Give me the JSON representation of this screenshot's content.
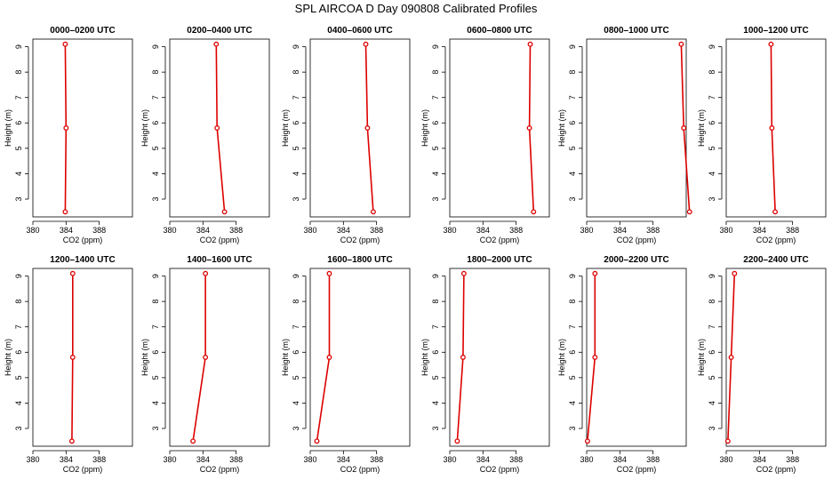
{
  "title": "SPL AIRCOA D  Day 090808  Calibrated Profiles",
  "colors": {
    "profile": "#dd0000",
    "axis": "#000000"
  },
  "chart_data": [
    {
      "type": "line",
      "title": "0000–0200 UTC",
      "xlabel": "CO2 (ppm)",
      "ylabel": "Height (m)",
      "xlim": [
        380,
        392
      ],
      "ylim": [
        2.3,
        9.3
      ],
      "xticks": [
        380,
        384,
        388
      ],
      "yticks": [
        3,
        4,
        5,
        6,
        7,
        8,
        9
      ],
      "series": [
        {
          "x": [
            383.9,
            384.0,
            383.9
          ],
          "y": [
            2.5,
            5.8,
            9.1
          ]
        }
      ]
    },
    {
      "type": "line",
      "title": "0200–0400 UTC",
      "xlabel": "CO2 (ppm)",
      "ylabel": "Height (m)",
      "xlim": [
        380,
        392
      ],
      "ylim": [
        2.3,
        9.3
      ],
      "xticks": [
        380,
        384,
        388
      ],
      "yticks": [
        3,
        4,
        5,
        6,
        7,
        8,
        9
      ],
      "series": [
        {
          "x": [
            386.6,
            385.7,
            385.6
          ],
          "y": [
            2.5,
            5.8,
            9.1
          ]
        }
      ]
    },
    {
      "type": "line",
      "title": "0400–0600 UTC",
      "xlabel": "CO2 (ppm)",
      "ylabel": "Height (m)",
      "xlim": [
        380,
        392
      ],
      "ylim": [
        2.3,
        9.3
      ],
      "xticks": [
        380,
        384,
        388
      ],
      "yticks": [
        3,
        4,
        5,
        6,
        7,
        8,
        9
      ],
      "series": [
        {
          "x": [
            387.6,
            386.9,
            386.7
          ],
          "y": [
            2.5,
            5.8,
            9.1
          ]
        }
      ]
    },
    {
      "type": "line",
      "title": "0600–0800 UTC",
      "xlabel": "CO2 (ppm)",
      "ylabel": "Height (m)",
      "xlim": [
        380,
        392
      ],
      "ylim": [
        2.3,
        9.3
      ],
      "xticks": [
        380,
        384,
        388
      ],
      "yticks": [
        3,
        4,
        5,
        6,
        7,
        8,
        9
      ],
      "series": [
        {
          "x": [
            390.1,
            389.6,
            389.7
          ],
          "y": [
            2.5,
            5.8,
            9.1
          ]
        }
      ]
    },
    {
      "type": "line",
      "title": "0800–1000 UTC",
      "xlabel": "CO2 (ppm)",
      "ylabel": "Height (m)",
      "xlim": [
        380,
        392
      ],
      "ylim": [
        2.3,
        9.3
      ],
      "xticks": [
        380,
        384,
        388
      ],
      "yticks": [
        3,
        4,
        5,
        6,
        7,
        8,
        9
      ],
      "series": [
        {
          "x": [
            392.4,
            391.7,
            391.4
          ],
          "y": [
            2.5,
            5.8,
            9.1
          ]
        }
      ]
    },
    {
      "type": "line",
      "title": "1000–1200 UTC",
      "xlabel": "CO2 (ppm)",
      "ylabel": "Height (m)",
      "xlim": [
        380,
        392
      ],
      "ylim": [
        2.3,
        9.3
      ],
      "xticks": [
        380,
        384,
        388
      ],
      "yticks": [
        3,
        4,
        5,
        6,
        7,
        8,
        9
      ],
      "series": [
        {
          "x": [
            385.9,
            385.5,
            385.4
          ],
          "y": [
            2.5,
            5.8,
            9.1
          ]
        }
      ]
    },
    {
      "type": "line",
      "title": "1200–1400 UTC",
      "xlabel": "CO2 (ppm)",
      "ylabel": "Height (m)",
      "xlim": [
        380,
        392
      ],
      "ylim": [
        2.3,
        9.3
      ],
      "xticks": [
        380,
        384,
        388
      ],
      "yticks": [
        3,
        4,
        5,
        6,
        7,
        8,
        9
      ],
      "series": [
        {
          "x": [
            384.7,
            384.8,
            384.8
          ],
          "y": [
            2.5,
            5.8,
            9.1
          ]
        }
      ]
    },
    {
      "type": "line",
      "title": "1400–1600 UTC",
      "xlabel": "CO2 (ppm)",
      "ylabel": "Height (m)",
      "xlim": [
        380,
        392
      ],
      "ylim": [
        2.3,
        9.3
      ],
      "xticks": [
        380,
        384,
        388
      ],
      "yticks": [
        3,
        4,
        5,
        6,
        7,
        8,
        9
      ],
      "series": [
        {
          "x": [
            382.8,
            384.3,
            384.3
          ],
          "y": [
            2.5,
            5.8,
            9.1
          ]
        }
      ]
    },
    {
      "type": "line",
      "title": "1600–1800 UTC",
      "xlabel": "CO2 (ppm)",
      "ylabel": "Height (m)",
      "xlim": [
        380,
        392
      ],
      "ylim": [
        2.3,
        9.3
      ],
      "xticks": [
        380,
        384,
        388
      ],
      "yticks": [
        3,
        4,
        5,
        6,
        7,
        8,
        9
      ],
      "series": [
        {
          "x": [
            380.8,
            382.3,
            382.3
          ],
          "y": [
            2.5,
            5.8,
            9.1
          ]
        }
      ]
    },
    {
      "type": "line",
      "title": "1800–2000 UTC",
      "xlabel": "CO2 (ppm)",
      "ylabel": "Height (m)",
      "xlim": [
        380,
        392
      ],
      "ylim": [
        2.3,
        9.3
      ],
      "xticks": [
        380,
        384,
        388
      ],
      "yticks": [
        3,
        4,
        5,
        6,
        7,
        8,
        9
      ],
      "series": [
        {
          "x": [
            380.9,
            381.6,
            381.7
          ],
          "y": [
            2.5,
            5.8,
            9.1
          ]
        }
      ]
    },
    {
      "type": "line",
      "title": "2000–2200 UTC",
      "xlabel": "CO2 (ppm)",
      "ylabel": "Height (m)",
      "xlim": [
        380,
        392
      ],
      "ylim": [
        2.3,
        9.3
      ],
      "xticks": [
        380,
        384,
        388
      ],
      "yticks": [
        3,
        4,
        5,
        6,
        7,
        8,
        9
      ],
      "series": [
        {
          "x": [
            380.1,
            381.0,
            381.0
          ],
          "y": [
            2.5,
            5.8,
            9.1
          ]
        }
      ]
    },
    {
      "type": "line",
      "title": "2200–2400 UTC",
      "xlabel": "CO2 (ppm)",
      "ylabel": "Height (m)",
      "xlim": [
        380,
        392
      ],
      "ylim": [
        2.3,
        9.3
      ],
      "xticks": [
        380,
        384,
        388
      ],
      "yticks": [
        3,
        4,
        5,
        6,
        7,
        8,
        9
      ],
      "series": [
        {
          "x": [
            380.2,
            380.6,
            381.0
          ],
          "y": [
            2.5,
            5.8,
            9.1
          ]
        }
      ]
    }
  ]
}
